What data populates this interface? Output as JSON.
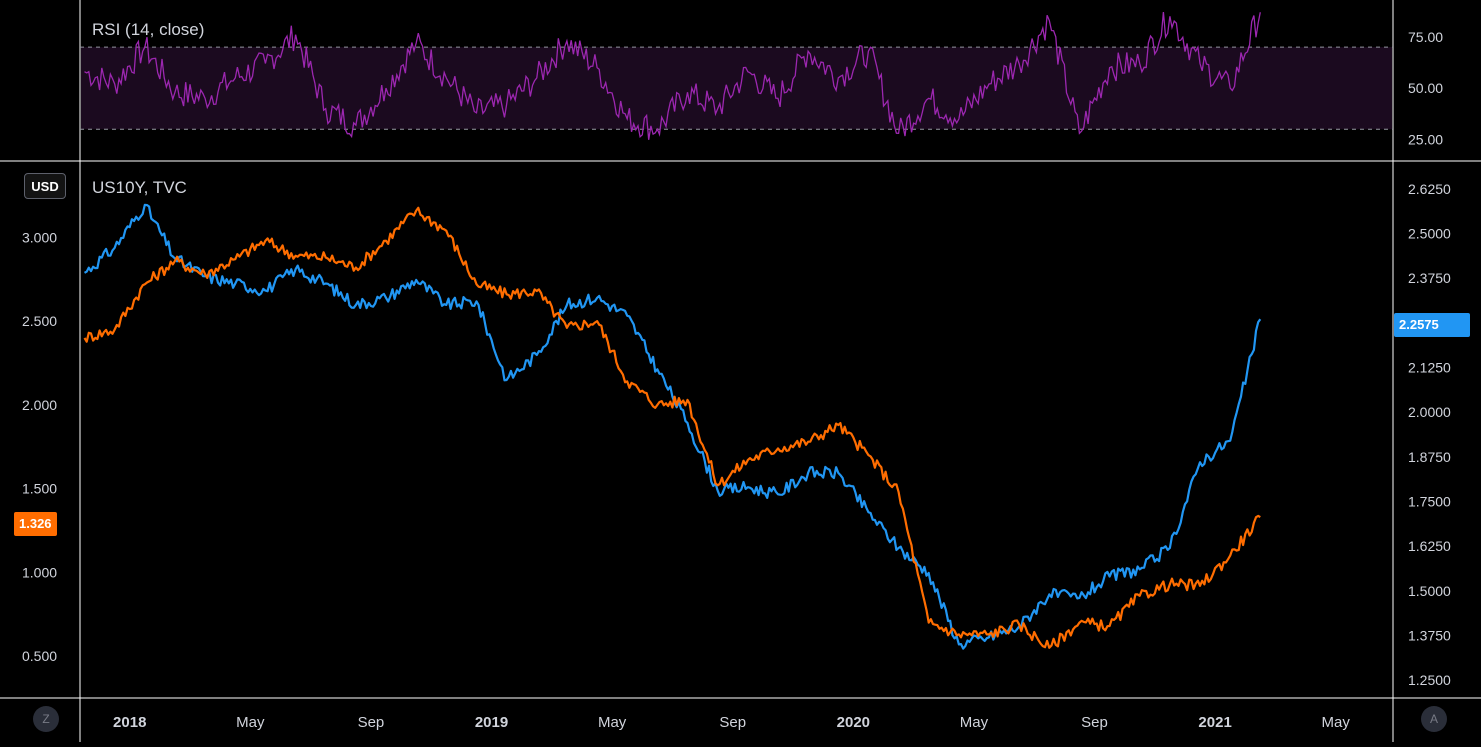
{
  "rsi_legend": "RSI (14, close)",
  "price_legend": "US10Y, TVC",
  "currency_label": "USD",
  "left_price_badge": "1.326",
  "right_price_badge": "2.2575",
  "bottom_left_button": "Z",
  "bottom_right_button": "A",
  "colors": {
    "rsi_line": "#9c27b0",
    "rsi_band": "#1b0a1f",
    "us10y_line": "#2196f3",
    "orange_line": "#ff6d00",
    "badge_orange": "#ff6d00",
    "badge_blue": "#2196f3",
    "grid_border": "#ffffff"
  },
  "chart_data": [
    {
      "type": "line",
      "title": "RSI (14, close)",
      "ylim": [
        15,
        90
      ],
      "yticks": [
        "25.00",
        "50.00",
        "75.00"
      ],
      "bands": {
        "upper": 70,
        "lower": 30
      },
      "x": [
        "2017-11",
        "2017-12",
        "2018-01",
        "2018-02",
        "2018-03",
        "2018-04",
        "2018-05",
        "2018-06",
        "2018-07",
        "2018-08",
        "2018-09",
        "2018-10",
        "2018-11",
        "2018-12",
        "2019-01",
        "2019-02",
        "2019-03",
        "2019-04",
        "2019-05",
        "2019-06",
        "2019-07",
        "2019-08",
        "2019-09",
        "2019-10",
        "2019-11",
        "2019-12",
        "2020-01",
        "2020-02",
        "2020-03",
        "2020-04",
        "2020-05",
        "2020-06",
        "2020-07",
        "2020-08",
        "2020-09",
        "2020-10",
        "2020-11",
        "2020-12",
        "2021-01",
        "2021-02"
      ],
      "series": [
        {
          "name": "RSI",
          "values": [
            58,
            52,
            70,
            48,
            45,
            55,
            62,
            76,
            40,
            32,
            50,
            72,
            55,
            38,
            42,
            55,
            73,
            60,
            35,
            30,
            48,
            40,
            58,
            45,
            68,
            55,
            68,
            28,
            45,
            35,
            52,
            62,
            83,
            28,
            60,
            62,
            85,
            62,
            50,
            87
          ]
        }
      ]
    },
    {
      "type": "line",
      "title": "US10Y, TVC",
      "x_ticks": [
        "2018",
        "May",
        "Sep",
        "2019",
        "May",
        "Sep",
        "2020",
        "May",
        "Sep",
        "2021",
        "May"
      ],
      "x_range": [
        "2017-11",
        "2021-06"
      ],
      "left_axis": {
        "ylim": [
          0.25,
          3.45
        ],
        "ticks": [
          "0.500",
          "1.000",
          "1.500",
          "2.000",
          "2.500",
          "3.000"
        ]
      },
      "right_axis": {
        "ylim": [
          1.2,
          2.7
        ],
        "ticks": [
          "1.2500",
          "1.3750",
          "1.5000",
          "1.6250",
          "1.7500",
          "1.8750",
          "2.0000",
          "2.1250",
          "2.2500",
          "2.3750",
          "2.5000",
          "2.6250"
        ]
      },
      "x": [
        "2017-11",
        "2017-12",
        "2018-01",
        "2018-02",
        "2018-03",
        "2018-04",
        "2018-05",
        "2018-06",
        "2018-07",
        "2018-08",
        "2018-09",
        "2018-10",
        "2018-11",
        "2018-12",
        "2019-01",
        "2019-02",
        "2019-03",
        "2019-04",
        "2019-05",
        "2019-06",
        "2019-07",
        "2019-08",
        "2019-09",
        "2019-10",
        "2019-11",
        "2019-12",
        "2020-01",
        "2020-02",
        "2020-03",
        "2020-04",
        "2020-05",
        "2020-06",
        "2020-07",
        "2020-08",
        "2020-09",
        "2020-10",
        "2020-11",
        "2020-12",
        "2021-01",
        "2021-02"
      ],
      "series": [
        {
          "name": "US10Y",
          "axis": "right",
          "color": "#2196f3",
          "values": [
            2.39,
            2.46,
            2.58,
            2.43,
            2.38,
            2.36,
            2.34,
            2.4,
            2.36,
            2.3,
            2.32,
            2.37,
            2.3,
            2.31,
            2.09,
            2.16,
            2.3,
            2.32,
            2.27,
            2.12,
            1.97,
            1.78,
            1.79,
            1.77,
            1.83,
            1.83,
            1.72,
            1.62,
            1.55,
            1.35,
            1.37,
            1.4,
            1.49,
            1.48,
            1.54,
            1.56,
            1.62,
            1.86,
            1.92,
            2.26
          ]
        },
        {
          "name": "",
          "axis": "left",
          "color": "#ff6d00",
          "values": [
            2.4,
            2.45,
            2.72,
            2.86,
            2.78,
            2.87,
            2.98,
            2.89,
            2.88,
            2.82,
            2.98,
            3.16,
            3.04,
            2.72,
            2.66,
            2.68,
            2.46,
            2.5,
            2.14,
            2.0,
            2.03,
            1.52,
            1.67,
            1.74,
            1.78,
            1.88,
            1.7,
            1.48,
            0.7,
            0.63,
            0.63,
            0.69,
            0.55,
            0.7,
            0.68,
            0.86,
            0.93,
            0.92,
            1.1,
            1.33
          ]
        }
      ]
    }
  ]
}
